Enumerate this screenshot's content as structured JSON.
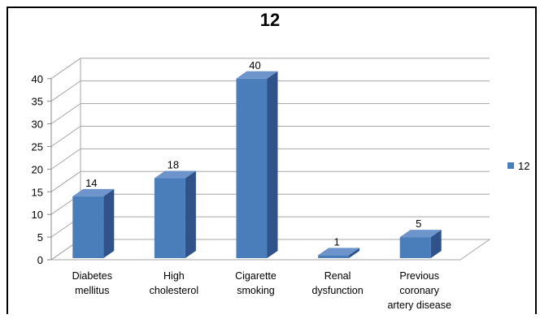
{
  "chart_data": {
    "type": "bar",
    "title": "12",
    "categories": [
      [
        "Diabetes",
        "mellitus"
      ],
      [
        "High",
        "cholesterol"
      ],
      [
        "Cigarette",
        "smoking"
      ],
      [
        "Renal",
        "dysfunction"
      ],
      [
        "Previous",
        "coronary",
        "artery disease"
      ]
    ],
    "series": [
      {
        "name": "12",
        "values": [
          14,
          18,
          40,
          1,
          5
        ]
      }
    ],
    "ylim": [
      0,
      40
    ],
    "yticks": [
      0,
      5,
      10,
      15,
      20,
      25,
      30,
      35,
      40
    ],
    "grid": true,
    "legend_position": "right",
    "colors": {
      "bar_front": "#4a7ebb",
      "bar_side": "#2e5289",
      "bar_top": "#6d95cc",
      "grid": "#a6a6a6"
    }
  }
}
